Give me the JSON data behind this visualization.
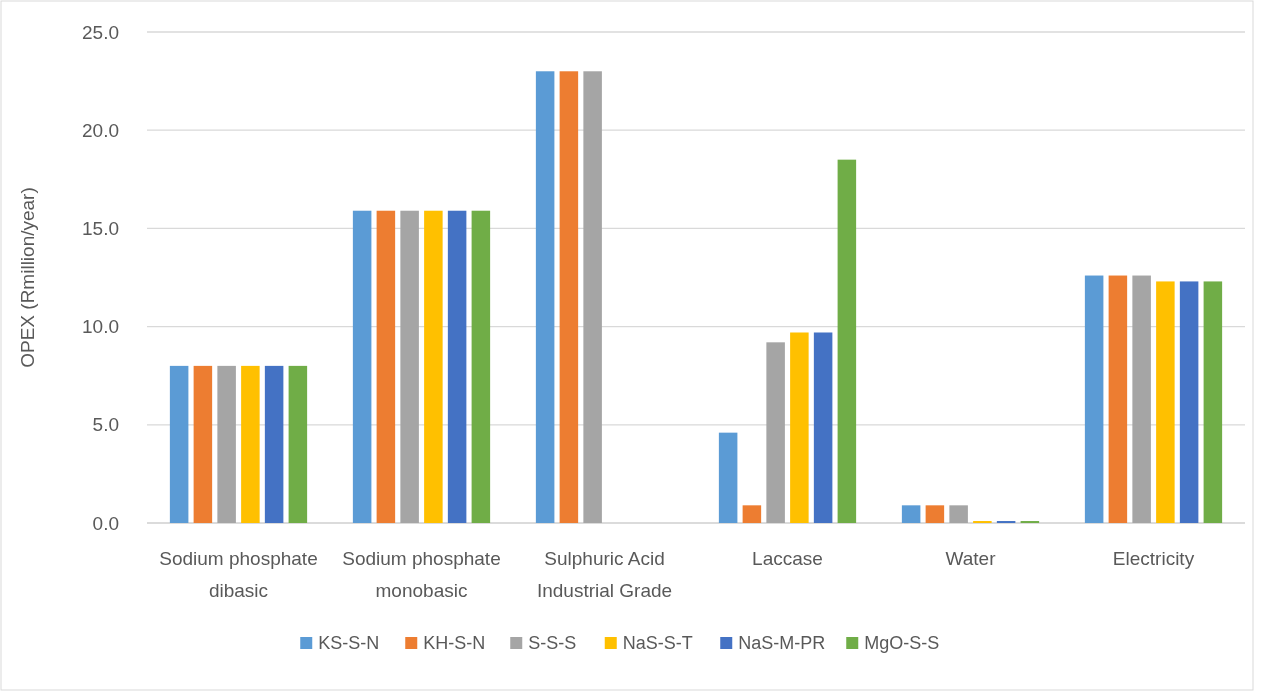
{
  "chart_data": {
    "type": "bar",
    "ylabel": "OPEX (Rmillion/year)",
    "categories": [
      "Sodium phosphate dibasic",
      "Sodium phosphate monobasic",
      "Sulphuric Acid Industrial Grade",
      "Laccase",
      "Water",
      "Electricity"
    ],
    "series": [
      {
        "name": "KS-S-N",
        "color": "#5b9bd5",
        "values": [
          8.0,
          15.9,
          23.0,
          4.6,
          0.9,
          12.6
        ]
      },
      {
        "name": "KH-S-N",
        "color": "#ed7d31",
        "values": [
          8.0,
          15.9,
          23.0,
          0.9,
          0.9,
          12.6
        ]
      },
      {
        "name": "S-S-S",
        "color": "#a5a5a5",
        "values": [
          8.0,
          15.9,
          23.0,
          9.2,
          0.9,
          12.6
        ]
      },
      {
        "name": "NaS-S-T",
        "color": "#ffc000",
        "values": [
          8.0,
          15.9,
          0,
          9.7,
          0.1,
          12.3
        ]
      },
      {
        "name": "NaS-M-PR",
        "color": "#4472c4",
        "values": [
          8.0,
          15.9,
          0,
          9.7,
          0.1,
          12.3
        ]
      },
      {
        "name": "MgO-S-S",
        "color": "#70ad47",
        "values": [
          8.0,
          15.9,
          0,
          18.5,
          0.1,
          12.3
        ]
      }
    ],
    "ylim": [
      0,
      25
    ],
    "yticks": [
      {
        "value": 0,
        "label": "0.0"
      },
      {
        "value": 5,
        "label": "5.0"
      },
      {
        "value": 10,
        "label": "10.0"
      },
      {
        "value": 15,
        "label": "15.0"
      },
      {
        "value": 20,
        "label": "20.0"
      },
      {
        "value": 25,
        "label": "25.0"
      }
    ],
    "grid": "y",
    "legend": "bottom"
  }
}
